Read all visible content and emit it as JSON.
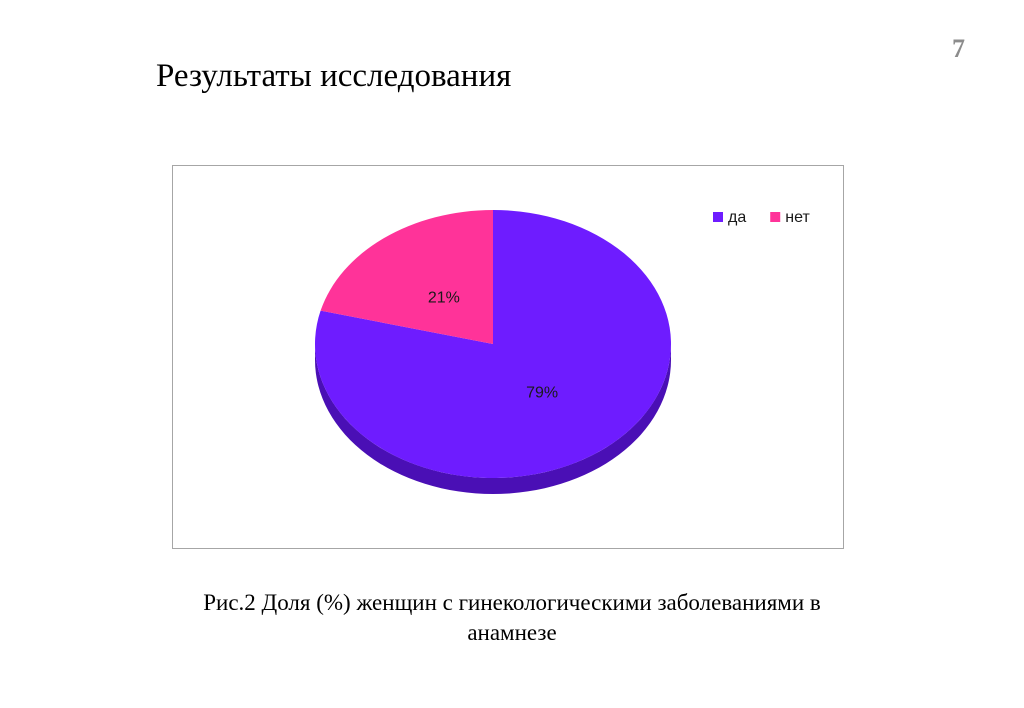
{
  "slide": {
    "number": "7",
    "title": "Результаты исследования",
    "caption_line1": "Рис.2 Доля (%) женщин с гинекологическими заболеваниями в",
    "caption_line2": "анамнезе"
  },
  "chart_data": {
    "type": "pie",
    "title": "",
    "legend_position": "top-right",
    "slices": [
      {
        "name": "да",
        "value": 79,
        "label": "79%",
        "color": "#6e1cff",
        "side_color": "#4a0fb5"
      },
      {
        "name": "нет",
        "value": 21,
        "label": "21%",
        "color": "#ff3399",
        "side_color": "#b3246b"
      }
    ]
  }
}
